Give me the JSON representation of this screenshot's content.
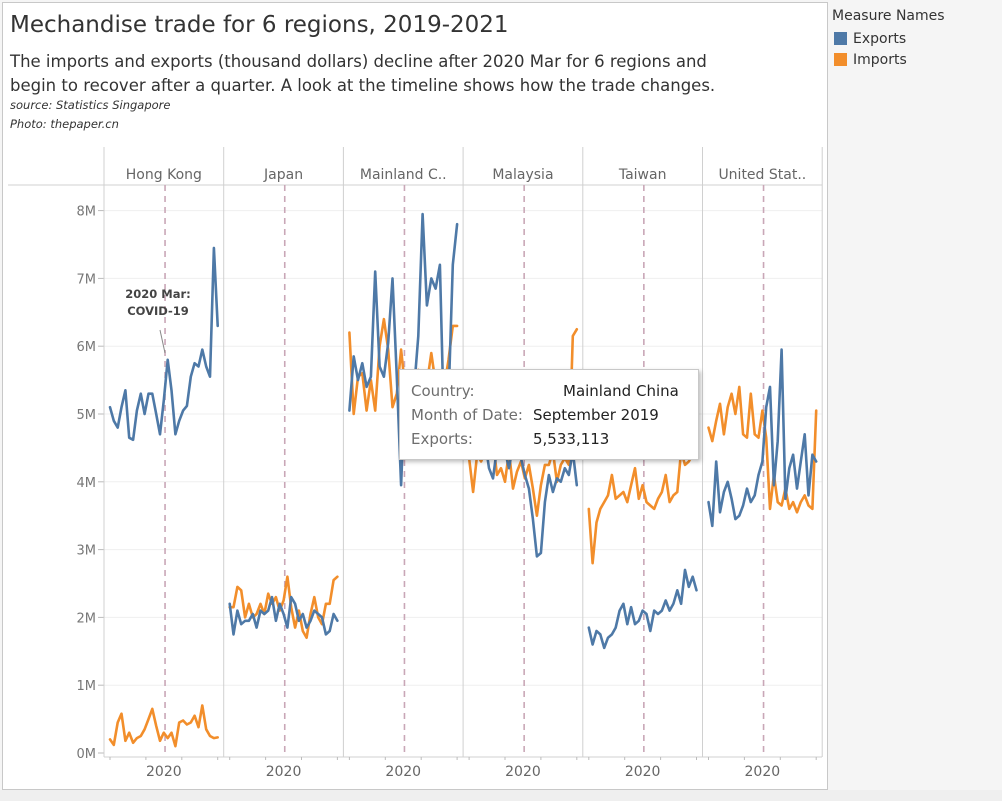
{
  "title": "Mechandise trade for  6 regions, 2019-2021",
  "subtitle": "The imports and exports (thousand dollars) decline after 2020 Mar for 6 regions and begin to recover after a quarter. A look at the timeline shows how the trade changes.",
  "source": "source: Statistics Singapore",
  "photo": "Photo: thepaper.cn",
  "legend": {
    "title": "Measure Names",
    "items": [
      {
        "label": "Exports",
        "color": "#4e79a7"
      },
      {
        "label": "Imports",
        "color": "#f28e2b"
      }
    ]
  },
  "annotation": {
    "line1": "2020 Mar:",
    "line2": "COVID-19"
  },
  "tooltip": {
    "country_label": "Country:",
    "country_value": "Mainland China",
    "month_label": "Month of Date:",
    "month_value": "September 2019",
    "exports_label": "Exports:",
    "exports_value": "5,533,113"
  },
  "chart_data": {
    "type": "line",
    "x_tick_label": "2020",
    "reference_line": "2020 Mar",
    "ylim": [
      0,
      8000000
    ],
    "y_ticks": [
      {
        "value": 0,
        "label": "0M"
      },
      {
        "value": 1000000,
        "label": "1M"
      },
      {
        "value": 2000000,
        "label": "2M"
      },
      {
        "value": 3000000,
        "label": "3M"
      },
      {
        "value": 4000000,
        "label": "4M"
      },
      {
        "value": 5000000,
        "label": "5M"
      },
      {
        "value": 6000000,
        "label": "6M"
      },
      {
        "value": 7000000,
        "label": "7M"
      },
      {
        "value": 8000000,
        "label": "8M"
      }
    ],
    "panels": [
      {
        "name": "Hong Kong",
        "exports": [
          5.1,
          4.9,
          4.8,
          5.1,
          5.35,
          4.65,
          4.62,
          5.05,
          5.3,
          5.0,
          5.3,
          5.3,
          5.0,
          4.7,
          5.2,
          5.8,
          5.35,
          4.7,
          4.9,
          5.05,
          5.12,
          5.55,
          5.75,
          5.7,
          5.95,
          5.7,
          5.55,
          7.45,
          6.3
        ],
        "imports": [
          0.2,
          0.12,
          0.45,
          0.58,
          0.18,
          0.3,
          0.15,
          0.22,
          0.25,
          0.35,
          0.5,
          0.65,
          0.4,
          0.18,
          0.3,
          0.22,
          0.3,
          0.1,
          0.45,
          0.48,
          0.42,
          0.45,
          0.55,
          0.38,
          0.7,
          0.35,
          0.25,
          0.22,
          0.23
        ]
      },
      {
        "name": "Japan",
        "exports": [
          2.2,
          1.75,
          2.1,
          1.9,
          1.95,
          1.95,
          2.05,
          1.85,
          2.1,
          2.05,
          2.1,
          2.3,
          1.95,
          2.2,
          2.05,
          1.85,
          2.3,
          2.2,
          1.95,
          2.05,
          1.85,
          1.95,
          2.1,
          2.05,
          2.0,
          1.75,
          1.8,
          2.05,
          1.95
        ],
        "imports": [
          2.15,
          2.15,
          2.45,
          2.4,
          2.0,
          2.2,
          2.0,
          2.05,
          2.2,
          2.05,
          2.35,
          2.2,
          2.3,
          2.1,
          2.25,
          2.6,
          2.15,
          1.85,
          2.1,
          1.8,
          1.7,
          2.05,
          2.3,
          2.0,
          1.9,
          2.2,
          2.2,
          2.55,
          2.6
        ]
      },
      {
        "name": "Mainland C..",
        "exports": [
          5.05,
          5.85,
          5.5,
          5.75,
          5.4,
          5.55,
          7.1,
          5.7,
          5.55,
          6.05,
          7.0,
          5.55,
          3.95,
          5.55,
          4.4,
          5.35,
          6.15,
          7.95,
          6.6,
          7.0,
          6.85,
          7.2,
          4.7,
          5.2,
          7.2,
          7.8
        ],
        "imports": [
          6.2,
          5.0,
          5.55,
          5.6,
          5.05,
          5.5,
          5.05,
          6.0,
          6.4,
          5.95,
          5.1,
          5.3,
          5.95,
          5.35,
          4.85,
          5.45,
          5.65,
          5.2,
          5.45,
          5.9,
          5.45,
          4.95,
          5.4,
          5.8,
          6.3,
          6.3
        ]
      },
      {
        "name": "Malaysia",
        "exports": [
          4.55,
          4.65,
          4.35,
          4.75,
          4.6,
          4.2,
          4.05,
          4.5,
          4.4,
          4.45,
          4.2,
          4.55,
          4.6,
          4.35,
          4.1,
          3.9,
          3.45,
          2.9,
          2.95,
          3.7,
          4.1,
          3.85,
          4.05,
          4.0,
          4.2,
          4.1,
          4.45,
          3.95
        ],
        "imports": [
          4.35,
          3.85,
          4.4,
          4.3,
          4.45,
          4.35,
          4.6,
          4.1,
          4.2,
          4.0,
          4.45,
          3.9,
          4.15,
          4.3,
          4.05,
          4.25,
          3.9,
          3.5,
          3.95,
          4.25,
          4.25,
          4.45,
          4.0,
          4.25,
          4.35,
          4.25,
          6.15,
          6.25
        ]
      },
      {
        "name": "Taiwan",
        "exports": [
          1.85,
          1.6,
          1.8,
          1.75,
          1.55,
          1.7,
          1.75,
          1.85,
          2.1,
          2.2,
          1.9,
          2.15,
          1.9,
          1.95,
          2.1,
          2.05,
          1.8,
          2.1,
          2.05,
          2.1,
          2.25,
          2.1,
          2.2,
          2.4,
          2.2,
          2.7,
          2.45,
          2.6,
          2.4
        ],
        "imports": [
          3.6,
          2.8,
          3.4,
          3.6,
          3.7,
          3.8,
          4.1,
          3.75,
          3.8,
          3.85,
          3.7,
          3.95,
          4.2,
          3.75,
          3.95,
          3.7,
          3.65,
          3.6,
          3.75,
          3.85,
          4.1,
          3.7,
          3.8,
          3.85,
          4.45,
          4.25,
          4.3,
          4.4,
          4.4
        ]
      },
      {
        "name": "United Stat..",
        "exports": [
          3.7,
          3.35,
          4.3,
          3.55,
          3.85,
          4.0,
          3.75,
          3.45,
          3.5,
          3.65,
          3.9,
          3.7,
          3.8,
          4.1,
          4.3,
          5.1,
          5.4,
          3.95,
          4.6,
          5.95,
          3.75,
          4.2,
          4.4,
          3.9,
          4.3,
          4.7,
          3.8,
          4.4,
          4.3
        ],
        "imports": [
          4.8,
          4.6,
          4.9,
          5.15,
          4.7,
          5.1,
          5.3,
          5.0,
          5.4,
          4.7,
          4.65,
          5.3,
          4.7,
          4.65,
          5.05,
          4.65,
          3.6,
          4.1,
          3.7,
          3.65,
          3.9,
          3.6,
          3.7,
          3.55,
          3.7,
          3.8,
          3.65,
          3.6,
          5.05
        ]
      }
    ]
  }
}
